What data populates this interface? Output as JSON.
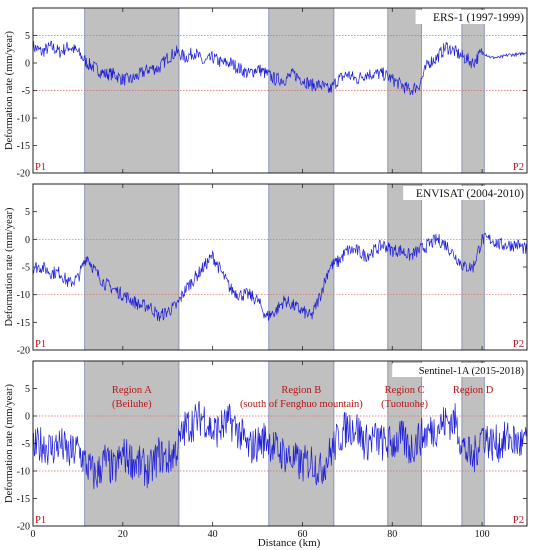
{
  "figure": {
    "xlabel": "Distance (km)",
    "ylabel": "Deformation rate (mm/year)",
    "x_ticks": [
      0,
      20,
      40,
      60,
      80,
      100
    ],
    "y_ticks": [
      -20,
      -15,
      -10,
      -5,
      0,
      5
    ],
    "xlim": [
      0,
      110
    ],
    "series_color": "#1e1ed8",
    "shade_color": "#c0c0c0",
    "ref_line_color": "#d46a6a",
    "label_color": "#b81414"
  },
  "chart_data": [
    {
      "type": "line",
      "title": "ERS-1 (1997-1999)",
      "start_label": "P1",
      "end_label": "P2",
      "ylim": [
        -20,
        10
      ],
      "reference_lines": [
        5,
        -5
      ],
      "regions": [
        [
          11.5,
          32.5
        ],
        [
          52.5,
          67.0
        ],
        [
          79.0,
          86.5
        ],
        [
          95.5,
          100.5
        ]
      ],
      "x": [
        0,
        2,
        4,
        6,
        8,
        10,
        12,
        14,
        16,
        18,
        20,
        22,
        24,
        26,
        28,
        30,
        32,
        34,
        36,
        38,
        40,
        42,
        44,
        46,
        48,
        50,
        52,
        54,
        56,
        58,
        60,
        62,
        64,
        66,
        68,
        70,
        72,
        74,
        76,
        78,
        80,
        82,
        84,
        86,
        88,
        90,
        92,
        94,
        96,
        98,
        100,
        102,
        104,
        106,
        108,
        110
      ],
      "y": [
        3,
        2,
        3,
        2,
        3,
        2,
        0,
        -1,
        -2,
        -2,
        -3,
        -3,
        -2,
        -1,
        -1,
        1,
        2,
        1,
        2,
        0,
        1,
        0,
        0,
        -1,
        -2,
        -1,
        -2,
        -3,
        -3,
        -2,
        -3,
        -4,
        -4,
        -5,
        -3,
        -2,
        -3,
        -2,
        -2,
        -2,
        -3,
        -4,
        -5,
        -4,
        0,
        1,
        3,
        2,
        1,
        0,
        2,
        1,
        1,
        1.5,
        1.5,
        2
      ]
    },
    {
      "type": "line",
      "title": "ENVISAT (2004-2010)",
      "start_label": "P1",
      "end_label": "P2",
      "ylim": [
        -20,
        10
      ],
      "reference_lines": [
        0,
        -10
      ],
      "regions": [
        [
          11.5,
          32.5
        ],
        [
          52.5,
          67.0
        ],
        [
          79.0,
          86.5
        ],
        [
          95.5,
          100.5
        ]
      ],
      "x": [
        0,
        2,
        4,
        6,
        8,
        10,
        12,
        14,
        16,
        18,
        20,
        22,
        24,
        26,
        28,
        30,
        32,
        34,
        36,
        38,
        40,
        42,
        44,
        46,
        48,
        50,
        52,
        54,
        56,
        58,
        60,
        62,
        64,
        66,
        68,
        70,
        72,
        74,
        76,
        78,
        80,
        82,
        84,
        86,
        88,
        90,
        92,
        94,
        96,
        98,
        100,
        102,
        104,
        106,
        108,
        110
      ],
      "y": [
        -5,
        -5,
        -6,
        -6,
        -8,
        -7,
        -3,
        -6,
        -8,
        -9,
        -10,
        -11,
        -12,
        -12,
        -14,
        -13,
        -12,
        -9,
        -7,
        -5,
        -3,
        -6,
        -9,
        -10,
        -10,
        -11,
        -14,
        -13,
        -11,
        -12,
        -13,
        -14,
        -10,
        -5,
        -4,
        -2,
        -2,
        -3,
        -2,
        -1,
        -2,
        -2,
        -3,
        -2,
        -1,
        0,
        -1,
        -3,
        -5,
        -5,
        0,
        0,
        -1,
        -1,
        -1,
        -2
      ]
    },
    {
      "type": "line",
      "title": "Sentinel-1A (2015-2018)",
      "start_label": "P1",
      "end_label": "P2",
      "ylim": [
        -20,
        10
      ],
      "reference_lines": [
        0,
        -10
      ],
      "regions": [
        [
          11.5,
          32.5
        ],
        [
          52.5,
          67.0
        ],
        [
          79.0,
          86.5
        ],
        [
          95.5,
          100.5
        ]
      ],
      "region_labels": [
        {
          "name": "Region A",
          "detail": "(Beiluhe)"
        },
        {
          "name": "Region B",
          "detail": "(south of Fenghuo mountain)"
        },
        {
          "name": "Region C",
          "detail": "(Tuotuohe)"
        },
        {
          "name": "Region D",
          "detail": ""
        }
      ],
      "x": [
        0,
        2,
        4,
        6,
        8,
        10,
        12,
        14,
        16,
        18,
        20,
        22,
        24,
        26,
        28,
        30,
        32,
        34,
        36,
        38,
        40,
        42,
        44,
        46,
        48,
        50,
        52,
        54,
        56,
        58,
        60,
        62,
        64,
        66,
        68,
        70,
        72,
        74,
        76,
        78,
        80,
        82,
        84,
        86,
        88,
        90,
        92,
        94,
        96,
        98,
        100,
        102,
        104,
        106,
        108,
        110
      ],
      "y": [
        -6,
        -5,
        -6,
        -5,
        -7,
        -6,
        -9,
        -11,
        -8,
        -10,
        -7,
        -8,
        -9,
        -10,
        -7,
        -8,
        -6,
        -2,
        -1,
        0,
        -3,
        -2,
        -1,
        -3,
        -6,
        -5,
        -4,
        -6,
        -7,
        -8,
        -9,
        -8,
        -10,
        -7,
        -4,
        -2,
        -2,
        -5,
        -4,
        -5,
        -5,
        -4,
        -6,
        -4,
        -3,
        -2,
        -1,
        -1,
        -6,
        -8,
        -3,
        -5,
        -5,
        -4,
        -5,
        -5
      ]
    }
  ]
}
